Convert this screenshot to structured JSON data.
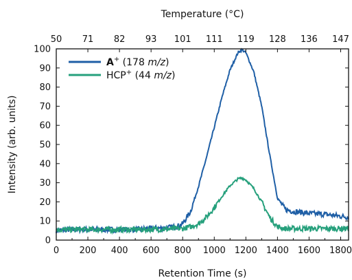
{
  "chart_data": {
    "type": "line",
    "xlabel": "Retention Time (s)",
    "ylabel": "Intensity (arb. units)",
    "top_xlabel": "Temperature (°C)",
    "xlim": [
      0,
      1850
    ],
    "ylim": [
      0,
      100
    ],
    "x_ticks": [
      0,
      200,
      400,
      600,
      800,
      1000,
      1200,
      1400,
      1600,
      1800
    ],
    "x_tick_labels": [
      "0",
      "200",
      "400",
      "600",
      "800",
      "1000",
      "1200",
      "1400",
      "1600",
      "1800"
    ],
    "y_ticks": [
      0,
      10,
      20,
      30,
      40,
      50,
      60,
      70,
      80,
      90,
      100
    ],
    "y_tick_labels": [
      "0",
      "10",
      "20",
      "30",
      "40",
      "50",
      "60",
      "70",
      "80",
      "90",
      "100"
    ],
    "top_ticks": [
      0,
      200,
      400,
      600,
      800,
      1000,
      1200,
      1400,
      1600,
      1800
    ],
    "top_tick_labels": [
      "50",
      "71",
      "82",
      "93",
      "101",
      "111",
      "119",
      "128",
      "136",
      "147"
    ],
    "grid": false,
    "legend_position": "top-left",
    "series": [
      {
        "name_bold": "A",
        "name_sup": "+",
        "name_rest": " (178 ",
        "name_italic": "m/z",
        "name_end": ")",
        "color": "#1f5fa6",
        "x": [
          0,
          100,
          200,
          300,
          400,
          500,
          600,
          700,
          760,
          800,
          850,
          900,
          950,
          1000,
          1050,
          1100,
          1150,
          1175,
          1200,
          1250,
          1300,
          1350,
          1400,
          1450,
          1500,
          1600,
          1700,
          1800,
          1850
        ],
        "y": [
          5,
          5.5,
          5.5,
          5.5,
          5.5,
          5.5,
          6,
          6.5,
          7,
          8.5,
          15,
          28,
          43,
          59,
          75,
          89,
          98,
          99.5,
          98,
          88,
          70,
          45,
          22,
          16,
          15,
          14,
          13.5,
          12.5,
          12
        ]
      },
      {
        "name_bold": "",
        "name_sup": "+",
        "name_rest": "HCP",
        "name_italic": "m/z",
        "name_end": ")",
        "name_after_sup": " (44 ",
        "color": "#26a07c",
        "x": [
          0,
          200,
          400,
          600,
          800,
          850,
          900,
          950,
          1000,
          1050,
          1100,
          1150,
          1175,
          1200,
          1250,
          1300,
          1350,
          1400,
          1450,
          1500,
          1600,
          1700,
          1800,
          1850
        ],
        "y": [
          5.5,
          5.5,
          5.5,
          5.5,
          6,
          7,
          8.5,
          12,
          17,
          23,
          28.5,
          32,
          32.5,
          31.5,
          27,
          20,
          12,
          7,
          6,
          6,
          6,
          6,
          6,
          6
        ]
      }
    ]
  }
}
